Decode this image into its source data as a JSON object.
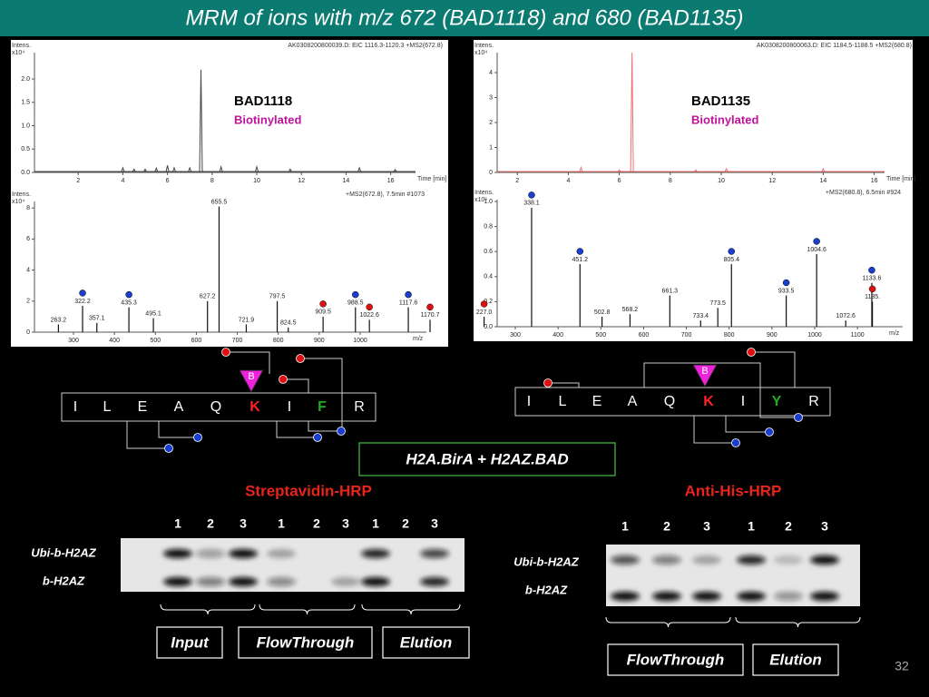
{
  "title": "MRM of ions with m/z 672 (BAD1118) and 680 (BAD1135)",
  "mrm": [
    {
      "header": "AK0308200800039.D: EIC 1116.3-1120.3 +MS2(672.8)",
      "intens": "Intens.",
      "scale": "x10⁴",
      "x_unit": "Time [min]",
      "xticks": [
        2,
        4,
        6,
        8,
        10,
        12,
        14,
        16
      ],
      "yticks": [
        {
          "value": 0,
          "label": "0.0"
        },
        0.5,
        {
          "value": 1,
          "label": "1.0"
        },
        1.5,
        {
          "value": 2,
          "label": "2.0"
        }
      ],
      "label": "BAD1118",
      "sublabel": "Biotinylated",
      "color": "#444",
      "peaks": [
        {
          "time": 4,
          "height": 0.1
        },
        {
          "time": 4.5,
          "height": 0.07
        },
        {
          "time": 5,
          "height": 0.07
        },
        {
          "time": 5.5,
          "height": 0.09
        },
        {
          "time": 6,
          "height": 0.15
        },
        {
          "time": 6.3,
          "height": 0.1
        },
        {
          "time": 7,
          "height": 0.1
        },
        {
          "time": 7.5,
          "height": 2.2
        },
        {
          "time": 8.4,
          "height": 0.12
        },
        {
          "time": 10,
          "height": 0.12
        },
        {
          "time": 11.5,
          "height": 0.07
        },
        {
          "time": 14.6,
          "height": 0.1
        },
        {
          "time": 16.2,
          "height": 0.06
        }
      ],
      "spectrum": {
        "header": "+MS2(672.8), 7.5min #1073",
        "intens": "Intens.",
        "scale": "x10⁴",
        "x_unit": "m/z",
        "xticks": [
          300,
          400,
          500,
          600,
          700,
          800,
          900,
          1000
        ],
        "yticks": [
          0,
          2,
          4,
          6,
          8
        ],
        "peaks": [
          {
            "mz": 263.2,
            "height": 0.5
          },
          {
            "mz": 322.2,
            "height": 1.7,
            "dot": "#1a3fd0"
          },
          {
            "mz": 357.1,
            "height": 0.6
          },
          {
            "mz": 435.3,
            "height": 1.6,
            "dot": "#1a3fd0"
          },
          {
            "mz": 495.1,
            "height": 0.9
          },
          {
            "mz": 627.2,
            "height": 2.0
          },
          {
            "mz": 655.5,
            "height": 8.1
          },
          {
            "mz": 721.9,
            "height": 0.5
          },
          {
            "mz": 797.5,
            "height": 2.0
          },
          {
            "mz": 824.5,
            "height": 0.3
          },
          {
            "mz": 909.5,
            "height": 1.0,
            "dot": "#e01010"
          },
          {
            "mz": 988.5,
            "height": 1.6,
            "dot": "#1a3fd0"
          },
          {
            "mz": 1022.6,
            "height": 0.8,
            "dot": "#e01010"
          },
          {
            "mz": 1117.6,
            "height": 1.6,
            "dot": "#1a3fd0"
          },
          {
            "mz": 1170.7,
            "height": 0.8,
            "dot": "#e01010"
          }
        ]
      }
    },
    {
      "header": "AK0308200800063.D: EIC 1184.5-1188.5 +MS2(680.8)",
      "intens": "Intens.",
      "scale": "x10⁴",
      "x_unit": "Time [min]",
      "xticks": [
        2,
        4,
        6,
        8,
        10,
        12,
        14,
        16
      ],
      "yticks": [
        0,
        1,
        2,
        3,
        4
      ],
      "label": "BAD1135",
      "sublabel": "Biotinylated",
      "color": "#f07070",
      "peaks": [
        {
          "time": 4.5,
          "height": 0.2
        },
        {
          "time": 6,
          "height": 0.1
        },
        {
          "time": 6.5,
          "height": 4.8
        },
        {
          "time": 9,
          "height": 0.1
        },
        {
          "time": 10.2,
          "height": 0.15
        },
        {
          "time": 14,
          "height": 0.15
        }
      ],
      "spectrum": {
        "header": "+MS2(680.8), 6.5min #924",
        "intens": "Intens.",
        "scale": "x10⁵",
        "x_unit": "m/z",
        "xticks": [
          300,
          400,
          500,
          600,
          700,
          800,
          900,
          1000,
          1100
        ],
        "yticks": [
          {
            "value": 0,
            "label": "0.0"
          },
          0.2,
          0.4,
          0.6,
          0.8,
          {
            "value": 1,
            "label": "1.0"
          }
        ],
        "peaks": [
          {
            "mz": {
              "value": 227,
              "label": "227.0"
            },
            "height": 0.08,
            "dot": "#e01010"
          },
          {
            "mz": 338.1,
            "height": 0.95,
            "dot": "#1a3fd0"
          },
          {
            "mz": 451.2,
            "height": 0.5,
            "dot": "#1a3fd0"
          },
          {
            "mz": 502.8,
            "height": 0.08
          },
          {
            "mz": 568.2,
            "height": 0.1
          },
          {
            "mz": 661.3,
            "height": 0.25
          },
          {
            "mz": 733.4,
            "height": 0.05
          },
          {
            "mz": 773.5,
            "height": 0.15
          },
          {
            "mz": 805.4,
            "height": 0.5,
            "dot": "#1a3fd0"
          },
          {
            "mz": 933.5,
            "height": 0.25,
            "dot": "#1a3fd0"
          },
          {
            "mz": 1004.6,
            "height": 0.58,
            "dot": "#1a3fd0"
          },
          {
            "mz": 1072.6,
            "height": 0.05
          },
          {
            "mz": 1133.6,
            "height": 0.35,
            "dot": "#1a3fd0"
          },
          {
            "mz": {
              "value": 1135,
              "label": "1135."
            },
            "height": 0.2,
            "dot": "#e01010"
          }
        ]
      }
    }
  ],
  "peptides": [
    {
      "residues": [
        "I",
        "L",
        "E",
        "A",
        "Q",
        "K",
        "I",
        "F",
        "R"
      ],
      "tag": "B"
    },
    {
      "residues": [
        "I",
        "L",
        "E",
        "A",
        "Q",
        "K",
        "I",
        "Y",
        "R"
      ],
      "tag": "B"
    }
  ],
  "construct": "H2A.BirA + H2AZ.BAD",
  "blots": [
    {
      "title": "Streptavidin-HRP",
      "lanes": [
        "1",
        "2",
        "3",
        "1",
        "2",
        "3",
        "1",
        "2",
        "3"
      ],
      "rows": [
        "Ubi-b-H2AZ",
        "b-H2AZ"
      ],
      "groups": [
        "Input",
        "FlowThrough",
        "Elution"
      ]
    },
    {
      "title": "Anti-His-HRP",
      "lanes": [
        "1",
        "2",
        "3",
        "1",
        "2",
        "3"
      ],
      "rows": [
        "Ubi-b-H2AZ",
        "b-H2AZ"
      ],
      "groups": [
        "FlowThrough",
        "Elution"
      ]
    }
  ],
  "page_number": "32"
}
